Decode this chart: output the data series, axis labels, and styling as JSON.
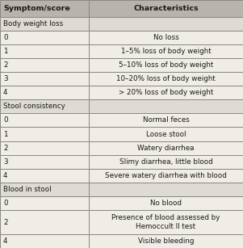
{
  "col_headers": [
    "Symptom/score",
    "Characteristics"
  ],
  "rows": [
    {
      "score": "Body weight loss",
      "char": "",
      "type": "category"
    },
    {
      "score": "0",
      "char": "No loss",
      "type": "data"
    },
    {
      "score": "1",
      "char": "1–5% loss of body weight",
      "type": "data"
    },
    {
      "score": "2",
      "char": "5–10% loss of body weight",
      "type": "data"
    },
    {
      "score": "3",
      "char": "10–20% loss of body weight",
      "type": "data"
    },
    {
      "score": "4",
      "char": "> 20% loss of body weight",
      "type": "data"
    },
    {
      "score": "Stool consistency",
      "char": "",
      "type": "category"
    },
    {
      "score": "0",
      "char": "Normal feces",
      "type": "data"
    },
    {
      "score": "1",
      "char": "Loose stool",
      "type": "data"
    },
    {
      "score": "2",
      "char": "Watery diarrhea",
      "type": "data"
    },
    {
      "score": "3",
      "char": "Slimy diarrhea, little blood",
      "type": "data"
    },
    {
      "score": "4",
      "char": "Severe watery diarrhea with blood",
      "type": "data"
    },
    {
      "score": "Blood in stool",
      "char": "",
      "type": "category"
    },
    {
      "score": "0",
      "char": "No blood",
      "type": "data"
    },
    {
      "score": "2",
      "char": "Presence of blood assessed by\nHemoccult II test",
      "type": "data2"
    },
    {
      "score": "4",
      "char": "Visible bleeding",
      "type": "data"
    }
  ],
  "header_bg": "#b8b3ac",
  "category_bg": "#dedad4",
  "data_bg": "#f0ece6",
  "border_color": "#888880",
  "text_color": "#1a1a1a",
  "header_fontsize": 6.8,
  "data_fontsize": 6.3,
  "col_split": 0.365
}
